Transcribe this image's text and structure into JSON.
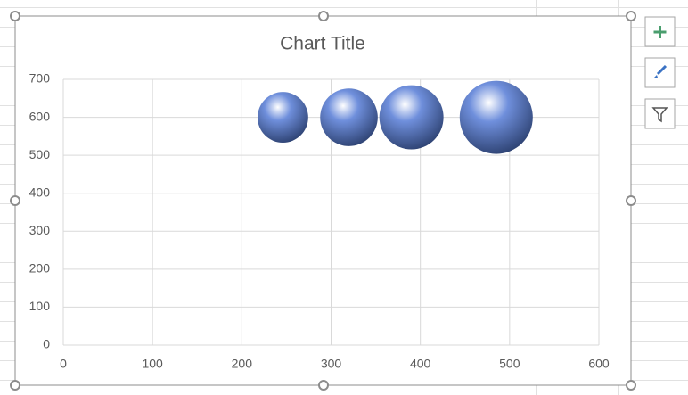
{
  "chart_data": {
    "type": "bubble",
    "title": "Chart Title",
    "series": [
      {
        "color": "#6f8fdc",
        "x": [
          246,
          320,
          390,
          485
        ],
        "values": [
          600,
          600,
          600,
          600
        ],
        "sizes": [
          48,
          62,
          77,
          100
        ]
      }
    ],
    "xlim": [
      0,
      600
    ],
    "xticks": [
      0,
      100,
      200,
      300,
      400,
      500,
      600
    ],
    "ylim": [
      0,
      700
    ],
    "yticks": [
      0,
      100,
      200,
      300,
      400,
      500,
      600,
      700
    ],
    "grid": true
  }
}
